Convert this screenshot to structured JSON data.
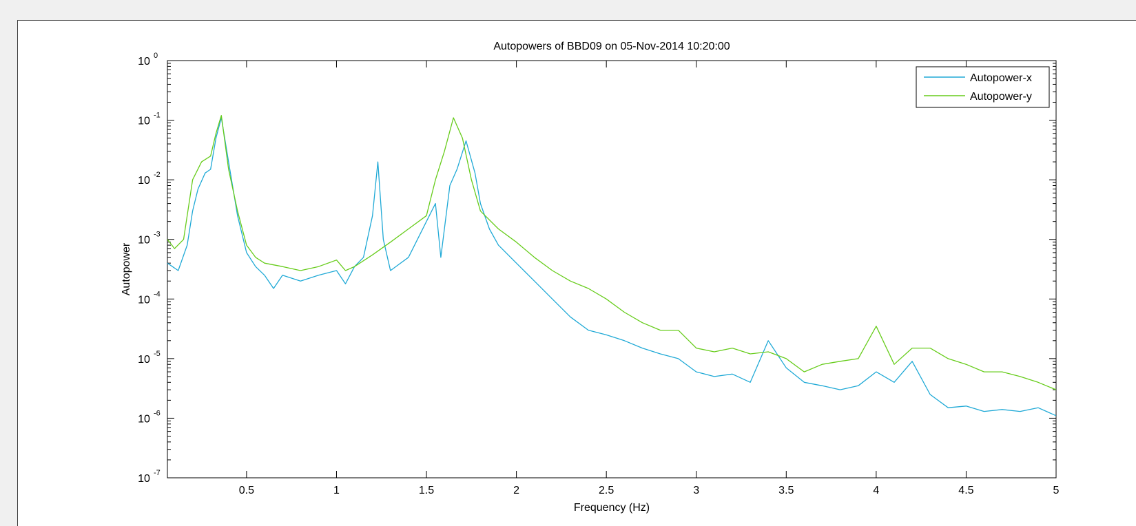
{
  "chart_data": {
    "type": "line",
    "title": "Autopowers of BBD09 on 05-Nov-2014 10:20:00",
    "xlabel": "Frequency (Hz)",
    "ylabel": "Autopower",
    "xlim": [
      0.06,
      5
    ],
    "ylim": [
      1e-07,
      1
    ],
    "yscale": "log",
    "x_ticks": [
      0.5,
      1,
      1.5,
      2,
      2.5,
      3,
      3.5,
      4,
      4.5,
      5
    ],
    "x_tick_labels": [
      "0.5",
      "1",
      "1.5",
      "2",
      "2.5",
      "3",
      "3.5",
      "4",
      "4.5",
      "5"
    ],
    "y_tick_exponents": [
      0,
      -1,
      -2,
      -3,
      -4,
      -5,
      -6,
      -7
    ],
    "y_tick_base": "10",
    "grid": false,
    "legend_position": "top-right",
    "series": [
      {
        "name": "Autopower-x",
        "color": "#1fa9d6",
        "points": [
          [
            0.06,
            0.0004
          ],
          [
            0.12,
            0.0003
          ],
          [
            0.17,
            0.0008
          ],
          [
            0.2,
            0.003
          ],
          [
            0.23,
            0.007
          ],
          [
            0.27,
            0.013
          ],
          [
            0.3,
            0.015
          ],
          [
            0.33,
            0.05
          ],
          [
            0.36,
            0.11
          ],
          [
            0.4,
            0.02
          ],
          [
            0.45,
            0.0025
          ],
          [
            0.5,
            0.0006
          ],
          [
            0.55,
            0.00035
          ],
          [
            0.6,
            0.00025
          ],
          [
            0.65,
            0.00015
          ],
          [
            0.7,
            0.00025
          ],
          [
            0.8,
            0.0002
          ],
          [
            0.9,
            0.00025
          ],
          [
            1.0,
            0.0003
          ],
          [
            1.05,
            0.00018
          ],
          [
            1.1,
            0.00035
          ],
          [
            1.15,
            0.0005
          ],
          [
            1.2,
            0.0025
          ],
          [
            1.23,
            0.02
          ],
          [
            1.26,
            0.001
          ],
          [
            1.3,
            0.0003
          ],
          [
            1.4,
            0.0005
          ],
          [
            1.5,
            0.002
          ],
          [
            1.55,
            0.004
          ],
          [
            1.58,
            0.0005
          ],
          [
            1.63,
            0.008
          ],
          [
            1.67,
            0.015
          ],
          [
            1.72,
            0.045
          ],
          [
            1.77,
            0.013
          ],
          [
            1.8,
            0.004
          ],
          [
            1.85,
            0.0015
          ],
          [
            1.9,
            0.0008
          ],
          [
            2.0,
            0.0004
          ],
          [
            2.1,
            0.0002
          ],
          [
            2.2,
            0.0001
          ],
          [
            2.3,
            5e-05
          ],
          [
            2.4,
            3e-05
          ],
          [
            2.5,
            2.5e-05
          ],
          [
            2.6,
            2e-05
          ],
          [
            2.7,
            1.5e-05
          ],
          [
            2.8,
            1.2e-05
          ],
          [
            2.9,
            1e-05
          ],
          [
            3.0,
            6e-06
          ],
          [
            3.1,
            5e-06
          ],
          [
            3.2,
            5.5e-06
          ],
          [
            3.3,
            4e-06
          ],
          [
            3.4,
            2e-05
          ],
          [
            3.5,
            7e-06
          ],
          [
            3.6,
            4e-06
          ],
          [
            3.7,
            3.5e-06
          ],
          [
            3.8,
            3e-06
          ],
          [
            3.9,
            3.5e-06
          ],
          [
            4.0,
            6e-06
          ],
          [
            4.1,
            4e-06
          ],
          [
            4.2,
            9e-06
          ],
          [
            4.3,
            2.5e-06
          ],
          [
            4.4,
            1.5e-06
          ],
          [
            4.5,
            1.6e-06
          ],
          [
            4.6,
            1.3e-06
          ],
          [
            4.7,
            1.4e-06
          ],
          [
            4.8,
            1.3e-06
          ],
          [
            4.9,
            1.5e-06
          ],
          [
            5.0,
            1.1e-06
          ]
        ]
      },
      {
        "name": "Autopower-y",
        "color": "#66cc1a",
        "points": [
          [
            0.06,
            0.001
          ],
          [
            0.1,
            0.0007
          ],
          [
            0.15,
            0.001
          ],
          [
            0.2,
            0.01
          ],
          [
            0.25,
            0.02
          ],
          [
            0.3,
            0.025
          ],
          [
            0.33,
            0.06
          ],
          [
            0.36,
            0.12
          ],
          [
            0.4,
            0.015
          ],
          [
            0.45,
            0.003
          ],
          [
            0.5,
            0.0008
          ],
          [
            0.55,
            0.0005
          ],
          [
            0.6,
            0.0004
          ],
          [
            0.7,
            0.00035
          ],
          [
            0.8,
            0.0003
          ],
          [
            0.9,
            0.00035
          ],
          [
            1.0,
            0.00045
          ],
          [
            1.05,
            0.0003
          ],
          [
            1.1,
            0.00035
          ],
          [
            1.2,
            0.00055
          ],
          [
            1.3,
            0.0009
          ],
          [
            1.4,
            0.0015
          ],
          [
            1.5,
            0.0025
          ],
          [
            1.55,
            0.01
          ],
          [
            1.6,
            0.03
          ],
          [
            1.65,
            0.11
          ],
          [
            1.7,
            0.05
          ],
          [
            1.75,
            0.01
          ],
          [
            1.8,
            0.003
          ],
          [
            1.9,
            0.0015
          ],
          [
            2.0,
            0.0009
          ],
          [
            2.1,
            0.0005
          ],
          [
            2.2,
            0.0003
          ],
          [
            2.3,
            0.0002
          ],
          [
            2.4,
            0.00015
          ],
          [
            2.5,
            0.0001
          ],
          [
            2.6,
            6e-05
          ],
          [
            2.7,
            4e-05
          ],
          [
            2.8,
            3e-05
          ],
          [
            2.9,
            3e-05
          ],
          [
            3.0,
            1.5e-05
          ],
          [
            3.1,
            1.3e-05
          ],
          [
            3.2,
            1.5e-05
          ],
          [
            3.3,
            1.2e-05
          ],
          [
            3.4,
            1.3e-05
          ],
          [
            3.5,
            1e-05
          ],
          [
            3.6,
            6e-06
          ],
          [
            3.7,
            8e-06
          ],
          [
            3.8,
            9e-06
          ],
          [
            3.9,
            1e-05
          ],
          [
            4.0,
            3.5e-05
          ],
          [
            4.1,
            8e-06
          ],
          [
            4.2,
            1.5e-05
          ],
          [
            4.3,
            1.5e-05
          ],
          [
            4.4,
            1e-05
          ],
          [
            4.5,
            8e-06
          ],
          [
            4.6,
            6e-06
          ],
          [
            4.7,
            6e-06
          ],
          [
            4.8,
            5e-06
          ],
          [
            4.9,
            4e-06
          ],
          [
            5.0,
            3e-06
          ]
        ]
      }
    ]
  }
}
